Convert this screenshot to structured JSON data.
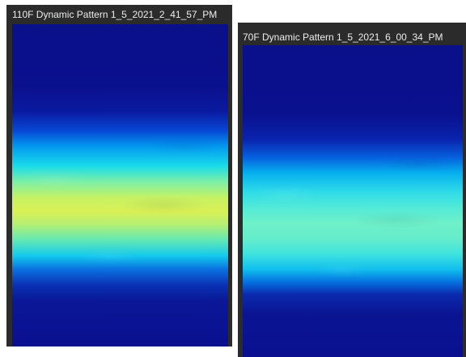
{
  "windows": [
    {
      "title": "110F Dynamic Pattern 1_5_2021_2_41_57_PM",
      "colormap": "jet",
      "peak_color": "#d9f055"
    },
    {
      "title": "70F Dynamic Pattern 1_5_2021_6_00_34_PM",
      "colormap": "jet",
      "peak_color": "#6ef0c8"
    }
  ]
}
